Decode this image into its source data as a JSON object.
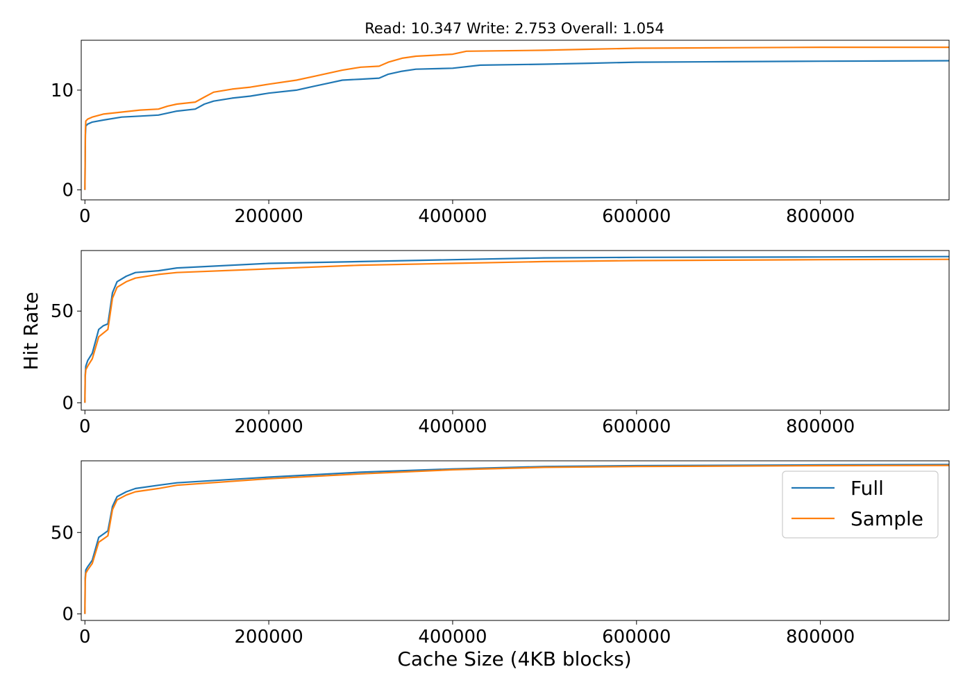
{
  "figure": {
    "title": "Read: 10.347 Write: 2.753 Overall: 1.054",
    "ylabel": "Hit Rate",
    "xlabel": "Cache Size (4KB blocks)"
  },
  "legend": {
    "placement": "top-right of bottom panel",
    "entries": [
      {
        "label": "Full",
        "color": "#1f77b4"
      },
      {
        "label": "Sample",
        "color": "#ff7f0e"
      }
    ]
  },
  "chart_data": [
    {
      "type": "line",
      "panel": "read",
      "title": "Read: 10.347 Write: 2.753 Overall: 1.054",
      "xlim": [
        -4000,
        940000
      ],
      "ylim": [
        -1,
        15
      ],
      "xticks": [
        0,
        200000,
        400000,
        600000,
        800000
      ],
      "xtick_labels": [
        "0",
        "200000",
        "400000",
        "600000",
        "800000"
      ],
      "yticks": [
        0,
        10
      ],
      "ytick_labels": [
        "0",
        "10"
      ],
      "series": [
        {
          "name": "Full",
          "color": "#1f77b4",
          "x": [
            0,
            500,
            1000,
            3000,
            8000,
            20000,
            40000,
            60000,
            80000,
            90000,
            100000,
            120000,
            130000,
            140000,
            160000,
            180000,
            200000,
            230000,
            250000,
            265000,
            280000,
            300000,
            320000,
            330000,
            345000,
            360000,
            400000,
            430000,
            500000,
            550000,
            600000,
            700000,
            800000,
            940000
          ],
          "y": [
            0,
            5.5,
            6.4,
            6.6,
            6.8,
            7.0,
            7.3,
            7.4,
            7.5,
            7.7,
            7.9,
            8.1,
            8.6,
            8.9,
            9.2,
            9.4,
            9.7,
            10.0,
            10.4,
            10.7,
            11.0,
            11.1,
            11.2,
            11.6,
            11.9,
            12.1,
            12.2,
            12.5,
            12.6,
            12.7,
            12.8,
            12.85,
            12.9,
            12.95
          ]
        },
        {
          "name": "Sample",
          "color": "#ff7f0e",
          "x": [
            0,
            500,
            1000,
            3000,
            8000,
            20000,
            40000,
            60000,
            80000,
            90000,
            100000,
            120000,
            130000,
            140000,
            160000,
            180000,
            200000,
            230000,
            250000,
            265000,
            280000,
            300000,
            320000,
            330000,
            345000,
            360000,
            400000,
            415000,
            500000,
            550000,
            600000,
            700000,
            800000,
            940000
          ],
          "y": [
            0,
            6.0,
            6.9,
            7.1,
            7.3,
            7.6,
            7.8,
            8.0,
            8.1,
            8.4,
            8.6,
            8.8,
            9.3,
            9.8,
            10.1,
            10.3,
            10.6,
            11.0,
            11.4,
            11.7,
            12.0,
            12.3,
            12.4,
            12.8,
            13.2,
            13.4,
            13.6,
            13.9,
            14.0,
            14.1,
            14.2,
            14.25,
            14.3,
            14.3
          ]
        }
      ]
    },
    {
      "type": "line",
      "panel": "write",
      "xlim": [
        -4000,
        940000
      ],
      "ylim": [
        -4,
        83
      ],
      "xticks": [
        0,
        200000,
        400000,
        600000,
        800000
      ],
      "xtick_labels": [
        "0",
        "200000",
        "400000",
        "600000",
        "800000"
      ],
      "yticks": [
        0,
        50
      ],
      "ytick_labels": [
        "0",
        "50"
      ],
      "series": [
        {
          "name": "Full",
          "color": "#1f77b4",
          "x": [
            0,
            300,
            1000,
            3000,
            8000,
            15000,
            20000,
            25000,
            30000,
            35000,
            45000,
            55000,
            80000,
            100000,
            200000,
            300000,
            400000,
            500000,
            600000,
            800000,
            940000
          ],
          "y": [
            0,
            15,
            20,
            23,
            27,
            40,
            42,
            43,
            60,
            66,
            69,
            71,
            72,
            73.5,
            76,
            77,
            78,
            79,
            79.3,
            79.5,
            79.7
          ]
        },
        {
          "name": "Sample",
          "color": "#ff7f0e",
          "x": [
            0,
            300,
            1000,
            3000,
            8000,
            15000,
            20000,
            25000,
            30000,
            35000,
            45000,
            55000,
            80000,
            100000,
            200000,
            300000,
            400000,
            500000,
            600000,
            800000,
            940000
          ],
          "y": [
            0,
            14,
            18,
            20,
            24,
            36,
            38,
            40,
            57,
            63,
            66,
            68,
            70,
            71,
            73,
            75,
            76,
            77,
            77.5,
            78,
            78.2
          ]
        }
      ]
    },
    {
      "type": "line",
      "panel": "overall",
      "xlim": [
        -4000,
        940000
      ],
      "ylim": [
        -4,
        94
      ],
      "xticks": [
        0,
        200000,
        400000,
        600000,
        800000
      ],
      "xtick_labels": [
        "0",
        "200000",
        "400000",
        "600000",
        "800000"
      ],
      "yticks": [
        0,
        50
      ],
      "ytick_labels": [
        "0",
        "50"
      ],
      "series": [
        {
          "name": "Full",
          "color": "#1f77b4",
          "x": [
            0,
            300,
            1000,
            3000,
            8000,
            15000,
            20000,
            25000,
            30000,
            35000,
            45000,
            55000,
            80000,
            100000,
            200000,
            300000,
            400000,
            500000,
            600000,
            800000,
            940000
          ],
          "y": [
            0,
            22,
            27,
            29,
            33,
            47,
            49,
            51,
            66,
            72,
            75,
            77,
            79,
            80.5,
            84,
            87,
            89,
            90.5,
            91,
            91.5,
            91.7
          ]
        },
        {
          "name": "Sample",
          "color": "#ff7f0e",
          "x": [
            0,
            300,
            1000,
            3000,
            8000,
            15000,
            20000,
            25000,
            30000,
            35000,
            45000,
            55000,
            80000,
            100000,
            200000,
            300000,
            400000,
            500000,
            600000,
            800000,
            940000
          ],
          "y": [
            0,
            20,
            25,
            27,
            31,
            44,
            46,
            48,
            64,
            70,
            73,
            75,
            77,
            79,
            83,
            86,
            88.5,
            90,
            90.5,
            91,
            91.2
          ]
        }
      ]
    }
  ]
}
